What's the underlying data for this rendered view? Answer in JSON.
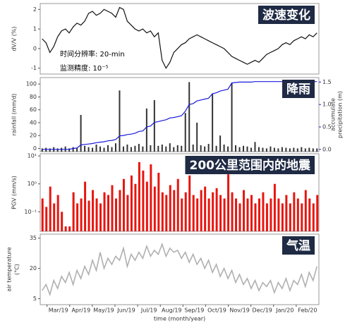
{
  "chart_data": [
    {
      "type": "line",
      "title": "波速变化",
      "ylabel": "dV/V (%)",
      "annotations": [
        "时间分辨率: 20-min",
        "监测精度: 10⁻⁵"
      ],
      "ylim": [
        -1.3,
        2.3
      ],
      "yticks": [
        -1,
        0,
        1,
        2
      ],
      "series": [
        {
          "type": "line",
          "color": "#111111",
          "values": [
            0.5,
            0.3,
            -0.2,
            0.1,
            0.6,
            0.9,
            1.0,
            0.8,
            1.1,
            1.3,
            1.2,
            1.4,
            1.8,
            1.9,
            1.7,
            1.8,
            2.0,
            1.9,
            1.8,
            1.6,
            2.1,
            2.0,
            1.4,
            1.2,
            1.0,
            0.9,
            1.0,
            0.8,
            0.9,
            0.6,
            0.8,
            -0.6,
            -1.0,
            -0.7,
            -0.2,
            0.0,
            0.2,
            0.3,
            0.5,
            0.6,
            0.7,
            0.6,
            0.5,
            0.4,
            0.3,
            0.2,
            0.1,
            0.0,
            -0.2,
            -0.4,
            -0.5,
            -0.6,
            -0.7,
            -0.8,
            -0.7,
            -0.6,
            -0.7,
            -0.5,
            -0.3,
            -0.2,
            -0.1,
            0.0,
            0.2,
            0.3,
            0.2,
            0.4,
            0.5,
            0.6,
            0.5,
            0.7,
            0.6,
            0.8
          ]
        }
      ]
    },
    {
      "type": "bar",
      "title": "降雨",
      "ylabel": "rainfall (mm/d)",
      "y2label": [
        "accumulate",
        "precipitation  (m)"
      ],
      "ylim": [
        -5,
        110
      ],
      "yticks": [
        0,
        20,
        40,
        60,
        80,
        100
      ],
      "y2lim": [
        -0.05,
        1.6
      ],
      "y2ticks": [
        {
          "value": 0,
          "label": "0.0"
        },
        {
          "value": 0.5,
          "label": "0.5"
        },
        {
          "value": 1,
          "label": "1.0"
        },
        {
          "value": 1.5,
          "label": "1.5"
        }
      ],
      "series": [
        {
          "type": "bar",
          "color": "#333333",
          "values": [
            0,
            1,
            0,
            2,
            0,
            1,
            3,
            0,
            2,
            1,
            52,
            4,
            2,
            1,
            6,
            3,
            1,
            5,
            2,
            8,
            90,
            3,
            6,
            2,
            4,
            7,
            3,
            62,
            5,
            75,
            4,
            6,
            3,
            8,
            2,
            5,
            4,
            55,
            103,
            6,
            40,
            5,
            3,
            7,
            85,
            4,
            20,
            6,
            3,
            102,
            5,
            2,
            4,
            3,
            1,
            10,
            2,
            1,
            0,
            3,
            1,
            0,
            2,
            1,
            0,
            1,
            0,
            2,
            0,
            1,
            0,
            0
          ]
        },
        {
          "type": "line",
          "axis": "y2",
          "color": "#1a1adb",
          "values": [
            0,
            0,
            0,
            0,
            0,
            0,
            0,
            0,
            0.02,
            0.03,
            0.1,
            0.11,
            0.12,
            0.13,
            0.15,
            0.16,
            0.17,
            0.19,
            0.2,
            0.22,
            0.3,
            0.31,
            0.33,
            0.34,
            0.36,
            0.4,
            0.41,
            0.5,
            0.52,
            0.6,
            0.62,
            0.64,
            0.66,
            0.7,
            0.71,
            0.73,
            0.75,
            0.85,
            1.0,
            1.02,
            1.08,
            1.1,
            1.12,
            1.14,
            1.24,
            1.26,
            1.3,
            1.32,
            1.34,
            1.48,
            1.49,
            1.5,
            1.5,
            1.5,
            1.5,
            1.51,
            1.51,
            1.51,
            1.51,
            1.51,
            1.51,
            1.51,
            1.51,
            1.51,
            1.51,
            1.51,
            1.51,
            1.51,
            1.51,
            1.51,
            1.51,
            1.51
          ]
        }
      ]
    },
    {
      "type": "bar",
      "title": "200公里范围内的地震",
      "ylabel": "PGV (mm/s)",
      "log": true,
      "ylim": [
        0.02,
        12
      ],
      "yticks": [
        {
          "value": 0.1,
          "label": "10⁻¹"
        },
        {
          "value": 1,
          "label": "10⁰"
        },
        {
          "value": 10,
          "label": "10¹"
        }
      ],
      "series": [
        {
          "type": "bar",
          "color": "#e8150f",
          "values": [
            0.3,
            0.15,
            0.8,
            0.2,
            0.4,
            0.1,
            0.03,
            0.03,
            0.5,
            0.2,
            0.3,
            1.2,
            0.25,
            0.6,
            0.3,
            0.2,
            0.5,
            0.4,
            0.9,
            0.3,
            0.6,
            1.5,
            0.4,
            2.0,
            1.0,
            6.0,
            3.0,
            1.2,
            5.0,
            0.8,
            2.5,
            0.5,
            0.4,
            0.9,
            0.6,
            1.5,
            0.3,
            0.5,
            2.0,
            0.4,
            0.3,
            0.6,
            0.8,
            0.3,
            0.5,
            0.7,
            0.4,
            0.3,
            2.2,
            0.5,
            0.3,
            0.2,
            0.6,
            0.3,
            0.4,
            0.2,
            0.3,
            0.5,
            0.2,
            0.3,
            1.0,
            0.3,
            0.2,
            0.4,
            0.2,
            0.5,
            0.3,
            0.2,
            0.6,
            0.3,
            0.2,
            0.4
          ]
        }
      ]
    },
    {
      "type": "line",
      "title": "气温",
      "ylabel": "air temperature",
      "ylabel2": "(°C)",
      "xlabel": "time (month/year)",
      "months": [
        "Mar/19",
        "Apr/19",
        "May/19",
        "Jun/19",
        "Jul/19",
        "Aug/19",
        "Sep/19",
        "Oct/19",
        "Nov/19",
        "Dec/19",
        "Jan/20",
        "Feb/20"
      ],
      "ylim": [
        2,
        37
      ],
      "yticks": [
        5,
        20,
        35
      ],
      "series": [
        {
          "type": "line",
          "color": "#b0b0b0",
          "values": [
            9,
            12,
            7,
            14,
            10,
            16,
            13,
            18,
            12,
            19,
            15,
            21,
            17,
            24,
            19,
            28,
            20,
            25,
            22,
            26,
            24,
            30,
            21,
            27,
            24,
            28,
            25,
            31,
            26,
            29,
            27,
            32,
            26,
            30,
            28,
            29,
            25,
            28,
            23,
            27,
            22,
            25,
            20,
            24,
            18,
            22,
            16,
            20,
            15,
            19,
            13,
            17,
            12,
            15,
            10,
            14,
            9,
            13,
            11,
            14,
            8,
            13,
            10,
            15,
            9,
            14,
            12,
            17,
            11,
            18,
            14,
            21
          ]
        }
      ]
    }
  ]
}
